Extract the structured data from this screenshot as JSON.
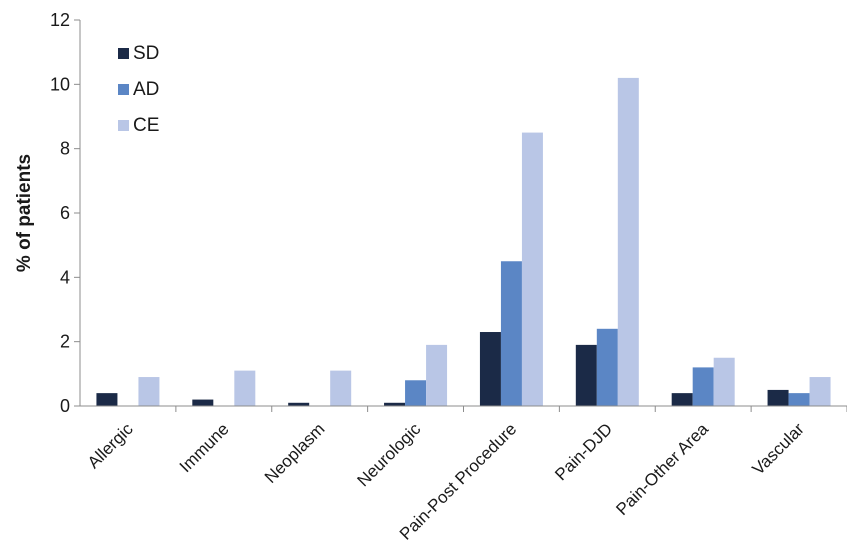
{
  "chart_data": {
    "type": "bar",
    "title": "",
    "xlabel": "",
    "ylabel": "% of patients",
    "ylim": [
      0,
      12
    ],
    "yticks": [
      0,
      2,
      4,
      6,
      8,
      10,
      12
    ],
    "grid": false,
    "legend_position": "top-left",
    "categories": [
      "Allergic",
      "Immune",
      "Neoplasm",
      "Neurologic",
      "Pain-Post Procedure",
      "Pain-DJD",
      "Pain-Other Area",
      "Vascular"
    ],
    "series": [
      {
        "name": "SD",
        "color": "#1b2a47",
        "values": [
          0.4,
          0.2,
          0.1,
          0.1,
          2.3,
          1.9,
          0.4,
          0.5
        ]
      },
      {
        "name": "AD",
        "color": "#5b86c5",
        "values": [
          0.0,
          0.0,
          0.0,
          0.8,
          4.5,
          2.4,
          1.2,
          0.4
        ]
      },
      {
        "name": "CE",
        "color": "#b9c6e6",
        "values": [
          0.9,
          1.1,
          1.1,
          1.9,
          8.5,
          10.2,
          1.5,
          0.9
        ]
      }
    ]
  }
}
